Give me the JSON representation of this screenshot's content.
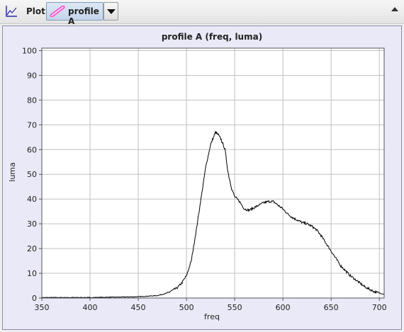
{
  "toolbar": {
    "plot_label": "Plot",
    "dataset_label": "profile A",
    "plot_icon": "axes-icon",
    "dataset_icon": "pink-line-icon",
    "dropdown_icon": "chevron-down-icon",
    "collapse_icon": "chevron-up-icon"
  },
  "colors": {
    "plot_background": "#ffffff",
    "frame_background": "#e9e9f7",
    "grid": "#c0c0c0",
    "series": "#000000",
    "dataset_swatch": "#ff44cc"
  },
  "chart_data": {
    "type": "line",
    "title": "profile A (freq, luma)",
    "xlabel": "freq",
    "ylabel": "luma",
    "xlim": [
      350,
      705
    ],
    "ylim": [
      0,
      101
    ],
    "xticks": [
      350,
      400,
      450,
      500,
      550,
      600,
      650,
      700
    ],
    "yticks": [
      0,
      10,
      20,
      30,
      40,
      50,
      60,
      70,
      80,
      90,
      100
    ],
    "grid": true,
    "series": [
      {
        "x": [
          350,
          400,
          450,
          470,
          480,
          490,
          495,
          500,
          505,
          510,
          515,
          520,
          525,
          530,
          533,
          536,
          540,
          543,
          547,
          550,
          555,
          560,
          565,
          570,
          575,
          580,
          585,
          590,
          595,
          600,
          605,
          610,
          615,
          620,
          625,
          630,
          635,
          640,
          645,
          650,
          655,
          660,
          665,
          670,
          675,
          680,
          685,
          690,
          695,
          700,
          705
        ],
        "y": [
          0.2,
          0.2,
          0.5,
          1,
          2,
          4,
          6,
          9,
          15,
          27,
          40,
          53,
          62,
          67,
          66,
          64,
          60,
          51,
          44,
          41,
          39,
          36,
          35.5,
          36.5,
          37.5,
          38.5,
          39,
          39,
          37.5,
          36,
          34,
          32.5,
          31.5,
          30.5,
          30,
          29,
          27.5,
          25,
          22,
          19,
          16,
          13,
          11,
          9,
          7.5,
          6,
          4.5,
          3.5,
          2.5,
          2,
          1.5
        ]
      }
    ]
  }
}
